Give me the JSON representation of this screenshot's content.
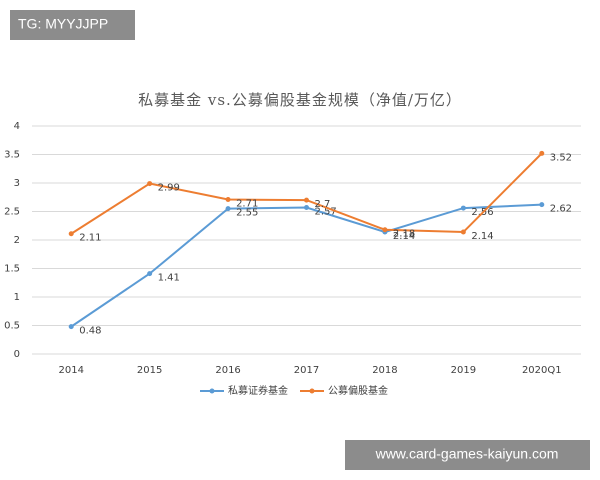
{
  "watermarks": {
    "top_left": "TG: MYYJJPP",
    "bottom_right": "www.card-games-kaiyun.com"
  },
  "chart_data": {
    "type": "line",
    "title": "私募基金 vs.公募偏股基金规模（净值/万亿）",
    "categories": [
      "2014",
      "2015",
      "2016",
      "2017",
      "2018",
      "2019",
      "2020Q1"
    ],
    "series": [
      {
        "name": "私募证券基金",
        "color": "#5b9bd5",
        "values": [
          0.48,
          1.41,
          2.55,
          2.57,
          2.14,
          2.56,
          2.62
        ]
      },
      {
        "name": "公募偏股基金",
        "color": "#ed7d31",
        "values": [
          2.11,
          2.99,
          2.71,
          2.7,
          2.18,
          2.14,
          3.52
        ]
      }
    ],
    "ylim": [
      0,
      4
    ],
    "yticks": [
      0,
      0.5,
      1,
      1.5,
      2,
      2.5,
      3,
      3.5,
      4
    ],
    "grid": true,
    "legend": "bottom"
  }
}
